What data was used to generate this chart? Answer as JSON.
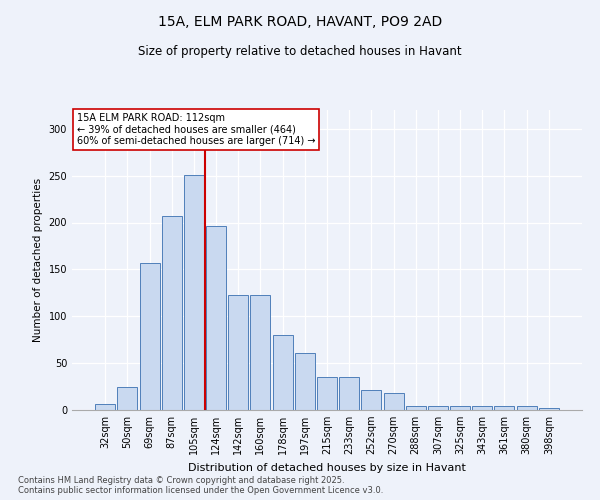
{
  "title1": "15A, ELM PARK ROAD, HAVANT, PO9 2AD",
  "title2": "Size of property relative to detached houses in Havant",
  "xlabel": "Distribution of detached houses by size in Havant",
  "ylabel": "Number of detached properties",
  "categories": [
    "32sqm",
    "50sqm",
    "69sqm",
    "87sqm",
    "105sqm",
    "124sqm",
    "142sqm",
    "160sqm",
    "178sqm",
    "197sqm",
    "215sqm",
    "233sqm",
    "252sqm",
    "270sqm",
    "288sqm",
    "307sqm",
    "325sqm",
    "343sqm",
    "361sqm",
    "380sqm",
    "398sqm"
  ],
  "values": [
    6,
    25,
    157,
    207,
    251,
    196,
    123,
    123,
    80,
    61,
    35,
    35,
    21,
    18,
    4,
    4,
    4,
    4,
    4,
    4,
    2
  ],
  "bar_color": "#c9d9f0",
  "bar_edge_color": "#4f7fba",
  "vline_color": "#cc0000",
  "annotation_text": "15A ELM PARK ROAD: 112sqm\n← 39% of detached houses are smaller (464)\n60% of semi-detached houses are larger (714) →",
  "annotation_box_color": "#ffffff",
  "annotation_box_edge": "#cc0000",
  "ylim": [
    0,
    320
  ],
  "yticks": [
    0,
    50,
    100,
    150,
    200,
    250,
    300
  ],
  "bg_color": "#eef2fa",
  "grid_color": "#ffffff",
  "footer1": "Contains HM Land Registry data © Crown copyright and database right 2025.",
  "footer2": "Contains public sector information licensed under the Open Government Licence v3.0."
}
